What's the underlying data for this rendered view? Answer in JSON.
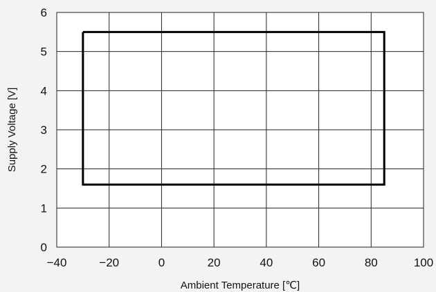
{
  "chart_data": {
    "type": "line",
    "title": "",
    "xlabel": "Ambient Temperature [℃]",
    "ylabel": "Supply Voltage [V]",
    "xlim": [
      -40,
      100
    ],
    "ylim": [
      0,
      6
    ],
    "x_ticks": [
      -40,
      -20,
      0,
      20,
      40,
      60,
      80,
      100
    ],
    "y_ticks": [
      0,
      1,
      2,
      3,
      4,
      5,
      6
    ],
    "x_tick_labels": [
      "−40",
      "−20",
      "0",
      "20",
      "40",
      "60",
      "80",
      "100"
    ],
    "y_tick_labels": [
      "0",
      "1",
      "2",
      "3",
      "4",
      "5",
      "6"
    ],
    "grid": true,
    "legend": "none",
    "series": [
      {
        "x": [
          -30,
          85,
          85,
          -30,
          -30
        ],
        "y": [
          5.5,
          5.5,
          1.6,
          1.6,
          5.5
        ],
        "color": "#000000"
      }
    ]
  },
  "colors": {
    "background": "#f3f3f3",
    "plot_background": "#ffffff",
    "grid": "#222222",
    "series": "#000000"
  }
}
